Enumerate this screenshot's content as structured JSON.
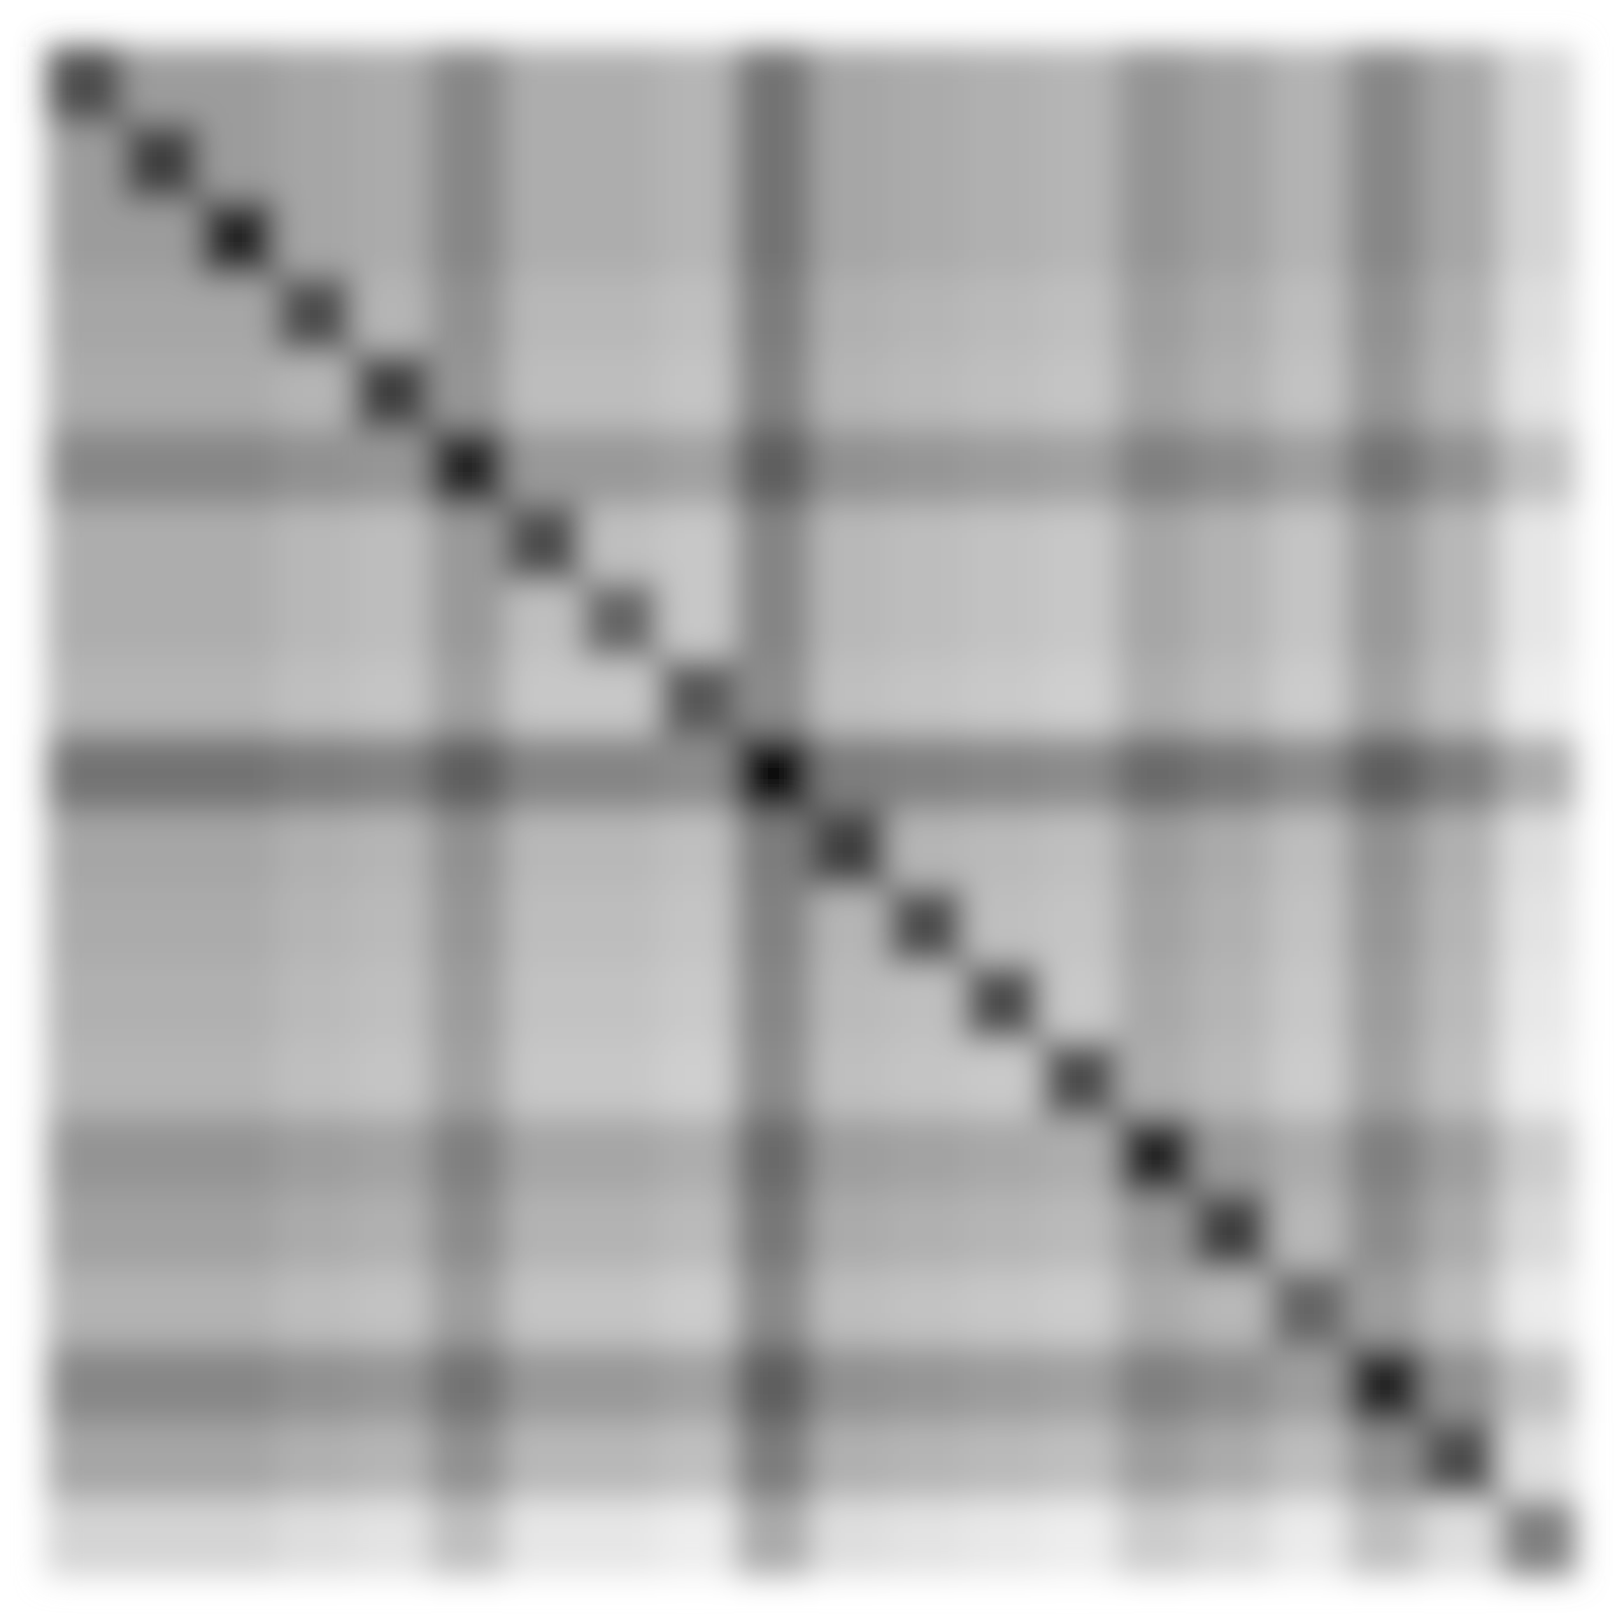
{
  "chart_data": {
    "type": "heatmap",
    "colors": [
      "#ffffff",
      "#000000"
    ],
    "vlim": [
      0,
      1
    ],
    "blur": true,
    "values": [
      [
        0.7,
        0.39,
        0.39,
        0.35,
        0.33,
        0.47,
        0.32,
        0.32,
        0.29,
        0.55,
        0.35,
        0.33,
        0.31,
        0.29,
        0.42,
        0.37,
        0.3,
        0.47,
        0.35,
        0.17
      ],
      [
        0.39,
        0.75,
        0.39,
        0.35,
        0.33,
        0.47,
        0.32,
        0.32,
        0.29,
        0.55,
        0.35,
        0.33,
        0.31,
        0.29,
        0.42,
        0.37,
        0.3,
        0.47,
        0.35,
        0.17
      ],
      [
        0.39,
        0.39,
        0.85,
        0.35,
        0.33,
        0.47,
        0.32,
        0.32,
        0.29,
        0.55,
        0.35,
        0.33,
        0.31,
        0.29,
        0.42,
        0.37,
        0.3,
        0.47,
        0.35,
        0.17
      ],
      [
        0.35,
        0.35,
        0.35,
        0.7,
        0.29,
        0.43,
        0.28,
        0.28,
        0.25,
        0.51,
        0.31,
        0.29,
        0.27,
        0.25,
        0.38,
        0.33,
        0.26,
        0.43,
        0.31,
        0.13
      ],
      [
        0.33,
        0.33,
        0.33,
        0.29,
        0.75,
        0.41,
        0.26,
        0.26,
        0.23,
        0.49,
        0.29,
        0.27,
        0.25,
        0.23,
        0.36,
        0.31,
        0.24,
        0.41,
        0.29,
        0.11
      ],
      [
        0.47,
        0.47,
        0.47,
        0.43,
        0.41,
        0.85,
        0.4,
        0.4,
        0.37,
        0.63,
        0.43,
        0.41,
        0.39,
        0.37,
        0.5,
        0.45,
        0.38,
        0.55,
        0.43,
        0.25
      ],
      [
        0.32,
        0.32,
        0.32,
        0.28,
        0.26,
        0.4,
        0.7,
        0.25,
        0.22,
        0.48,
        0.28,
        0.26,
        0.24,
        0.22,
        0.35,
        0.3,
        0.23,
        0.4,
        0.28,
        0.1
      ],
      [
        0.32,
        0.32,
        0.32,
        0.28,
        0.26,
        0.4,
        0.25,
        0.6,
        0.22,
        0.48,
        0.28,
        0.26,
        0.24,
        0.22,
        0.35,
        0.3,
        0.23,
        0.4,
        0.28,
        0.1
      ],
      [
        0.29,
        0.29,
        0.29,
        0.25,
        0.23,
        0.37,
        0.22,
        0.22,
        0.65,
        0.45,
        0.25,
        0.23,
        0.21,
        0.19,
        0.32,
        0.27,
        0.2,
        0.37,
        0.25,
        0.07
      ],
      [
        0.55,
        0.55,
        0.55,
        0.51,
        0.49,
        0.63,
        0.48,
        0.48,
        0.45,
        0.95,
        0.51,
        0.49,
        0.47,
        0.45,
        0.58,
        0.53,
        0.46,
        0.63,
        0.51,
        0.33
      ],
      [
        0.35,
        0.35,
        0.35,
        0.31,
        0.29,
        0.43,
        0.28,
        0.28,
        0.25,
        0.51,
        0.75,
        0.29,
        0.27,
        0.25,
        0.38,
        0.33,
        0.26,
        0.43,
        0.31,
        0.13
      ],
      [
        0.33,
        0.33,
        0.33,
        0.29,
        0.27,
        0.41,
        0.26,
        0.26,
        0.23,
        0.49,
        0.29,
        0.7,
        0.25,
        0.23,
        0.36,
        0.31,
        0.24,
        0.41,
        0.29,
        0.11
      ],
      [
        0.31,
        0.31,
        0.31,
        0.27,
        0.25,
        0.39,
        0.24,
        0.24,
        0.21,
        0.47,
        0.27,
        0.25,
        0.7,
        0.21,
        0.34,
        0.29,
        0.22,
        0.39,
        0.27,
        0.09
      ],
      [
        0.29,
        0.29,
        0.29,
        0.25,
        0.23,
        0.37,
        0.22,
        0.22,
        0.19,
        0.45,
        0.25,
        0.23,
        0.21,
        0.7,
        0.32,
        0.27,
        0.2,
        0.37,
        0.25,
        0.07
      ],
      [
        0.42,
        0.42,
        0.42,
        0.38,
        0.36,
        0.5,
        0.35,
        0.35,
        0.32,
        0.58,
        0.38,
        0.36,
        0.34,
        0.32,
        0.85,
        0.4,
        0.33,
        0.5,
        0.38,
        0.2
      ],
      [
        0.37,
        0.37,
        0.37,
        0.33,
        0.31,
        0.45,
        0.3,
        0.3,
        0.27,
        0.53,
        0.33,
        0.31,
        0.29,
        0.27,
        0.4,
        0.75,
        0.28,
        0.45,
        0.33,
        0.15
      ],
      [
        0.3,
        0.3,
        0.3,
        0.26,
        0.24,
        0.38,
        0.23,
        0.23,
        0.2,
        0.46,
        0.26,
        0.24,
        0.22,
        0.2,
        0.33,
        0.28,
        0.6,
        0.38,
        0.26,
        0.08
      ],
      [
        0.47,
        0.47,
        0.47,
        0.43,
        0.41,
        0.55,
        0.4,
        0.4,
        0.37,
        0.63,
        0.43,
        0.41,
        0.39,
        0.37,
        0.5,
        0.45,
        0.38,
        0.85,
        0.43,
        0.25
      ],
      [
        0.35,
        0.35,
        0.35,
        0.31,
        0.29,
        0.43,
        0.28,
        0.28,
        0.25,
        0.51,
        0.31,
        0.29,
        0.27,
        0.25,
        0.38,
        0.33,
        0.26,
        0.43,
        0.7,
        0.13
      ],
      [
        0.17,
        0.17,
        0.17,
        0.13,
        0.11,
        0.25,
        0.1,
        0.1,
        0.07,
        0.33,
        0.13,
        0.11,
        0.09,
        0.07,
        0.2,
        0.15,
        0.08,
        0.25,
        0.13,
        0.5
      ]
    ]
  }
}
